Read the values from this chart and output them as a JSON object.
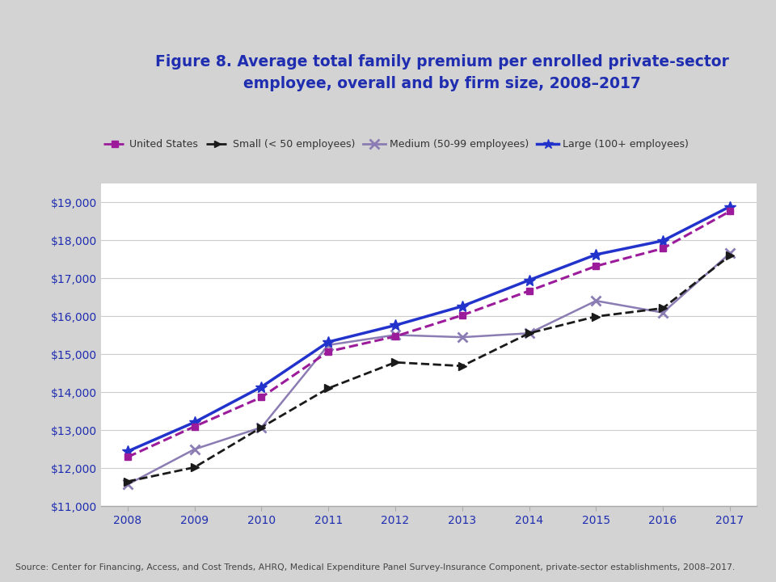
{
  "years": [
    2008,
    2009,
    2010,
    2011,
    2012,
    2013,
    2014,
    2015,
    2016,
    2017
  ],
  "united_states": [
    12298,
    13101,
    13871,
    15073,
    15473,
    16029,
    16669,
    17322,
    17788,
    18764
  ],
  "small": [
    11654,
    12027,
    13078,
    14107,
    14789,
    14693,
    15555,
    15996,
    16214,
    17595
  ],
  "medium": [
    11574,
    12503,
    13078,
    15245,
    15510,
    15451,
    15555,
    16408,
    16098,
    17656
  ],
  "large": [
    12447,
    13214,
    14143,
    15327,
    15764,
    16266,
    16952,
    17625,
    17990,
    18888
  ],
  "title": "Figure 8. Average total family premium per enrolled private-sector\nemployee, overall and by firm size, 2008–2017",
  "source_text": "Source: Center for Financing, Access, and Cost Trends, AHRQ, Medical Expenditure Panel Survey-Insurance Component, private-sector establishments, 2008–2017.",
  "ylim_min": 11000,
  "ylim_max": 19500,
  "ytick_step": 1000,
  "colors": {
    "united_states": "#9B1B9B",
    "small": "#1A1A1A",
    "medium": "#8B7CB3",
    "large": "#2233CC",
    "title": "#1F2DB0",
    "axis_label": "#1F2DB0",
    "background_header": "#D3D3D3",
    "source_text": "#444444"
  },
  "legend_labels": [
    "United States",
    "Small (< 50 employees)",
    "Medium (50-99 employees)",
    "Large (100+ employees)"
  ]
}
